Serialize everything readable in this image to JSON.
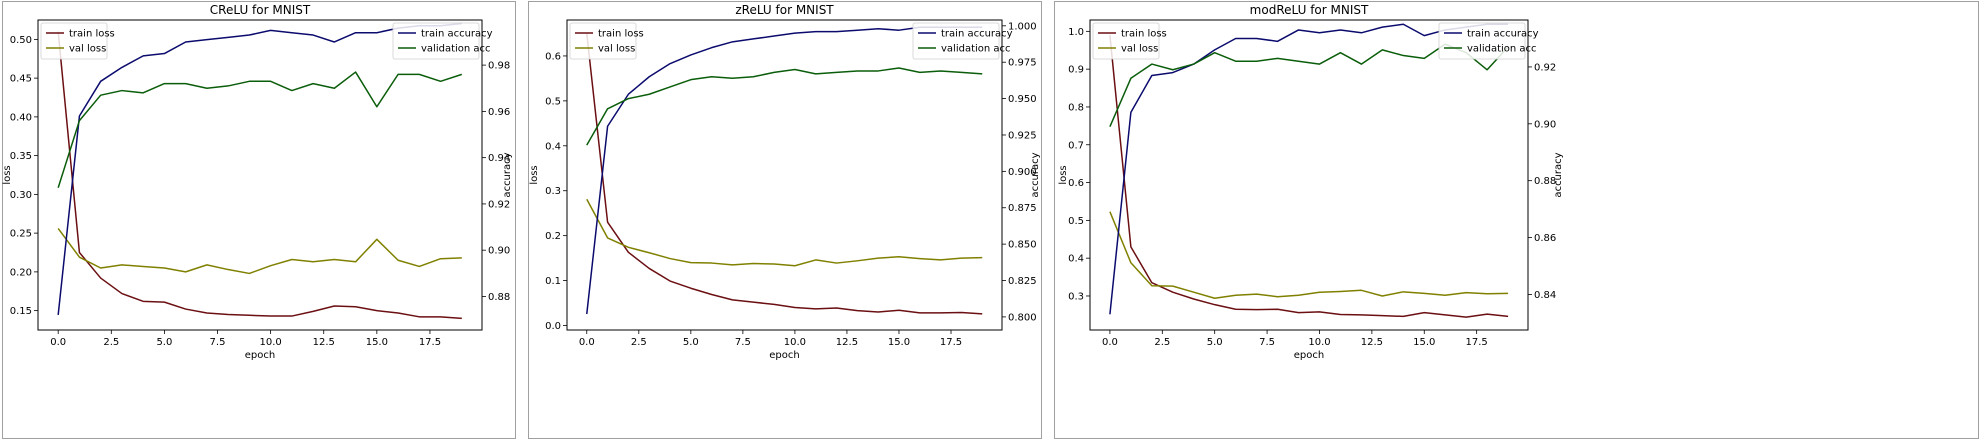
{
  "colors": {
    "train_loss": "#6b0f12",
    "val_loss": "#808000",
    "train_accuracy": "#0b0b6e",
    "validation_acc": "#0a5d0a"
  },
  "chart_data": [
    {
      "type": "line",
      "title": "CReLU for MNIST",
      "xlabel": "epoch",
      "ylabel_left": "loss",
      "ylabel_right": "accuracy",
      "xlim": [
        -0.95,
        19.95
      ],
      "xticks": [
        0.0,
        2.5,
        5.0,
        7.5,
        10.0,
        12.5,
        15.0,
        17.5
      ],
      "x": [
        0,
        1,
        2,
        3,
        4,
        5,
        6,
        7,
        8,
        9,
        10,
        11,
        12,
        13,
        14,
        15,
        16,
        17,
        18,
        19
      ],
      "left_axis": {
        "ylim": [
          0.125,
          0.525
        ],
        "yticks": [
          0.15,
          0.2,
          0.25,
          0.3,
          0.35,
          0.4,
          0.45,
          0.5
        ],
        "legend_position": "top-left",
        "series": [
          {
            "name": "train loss",
            "color_key": "train_loss",
            "values": [
              0.51,
              0.225,
              0.192,
              0.172,
              0.162,
              0.161,
              0.152,
              0.147,
              0.145,
              0.144,
              0.143,
              0.143,
              0.149,
              0.156,
              0.155,
              0.15,
              0.147,
              0.142,
              0.142,
              0.14
            ]
          },
          {
            "name": "val loss",
            "color_key": "val_loss",
            "values": [
              0.256,
              0.219,
              0.205,
              0.209,
              0.207,
              0.205,
              0.2,
              0.209,
              0.203,
              0.198,
              0.208,
              0.216,
              0.213,
              0.216,
              0.213,
              0.242,
              0.215,
              0.207,
              0.217,
              0.218
            ]
          }
        ]
      },
      "right_axis": {
        "ylim": [
          0.8655,
          0.9995
        ],
        "yticks": [
          0.88,
          0.9,
          0.92,
          0.94,
          0.96,
          0.98
        ],
        "legend_position": "top-right",
        "series": [
          {
            "name": "train accuracy",
            "color_key": "train_accuracy",
            "values": [
              0.872,
              0.958,
              0.973,
              0.979,
              0.984,
              0.985,
              0.99,
              0.991,
              0.992,
              0.993,
              0.995,
              0.994,
              0.993,
              0.99,
              0.994,
              0.994,
              0.996,
              0.997,
              0.997,
              0.998
            ]
          },
          {
            "name": "validation acc",
            "color_key": "validation_acc",
            "values": [
              0.927,
              0.956,
              0.967,
              0.969,
              0.968,
              0.972,
              0.972,
              0.97,
              0.971,
              0.973,
              0.973,
              0.969,
              0.972,
              0.97,
              0.977,
              0.962,
              0.976,
              0.976,
              0.973,
              0.976
            ]
          }
        ]
      }
    },
    {
      "type": "line",
      "title": "zReLU for MNIST",
      "xlabel": "epoch",
      "ylabel_left": "loss",
      "ylabel_right": "accuracy",
      "xlim": [
        -0.95,
        19.95
      ],
      "xticks": [
        0.0,
        2.5,
        5.0,
        7.5,
        10.0,
        12.5,
        15.0,
        17.5
      ],
      "x": [
        0,
        1,
        2,
        3,
        4,
        5,
        6,
        7,
        8,
        9,
        10,
        11,
        12,
        13,
        14,
        15,
        16,
        17,
        18,
        19
      ],
      "left_axis": {
        "ylim": [
          -0.01,
          0.68
        ],
        "yticks": [
          0.0,
          0.1,
          0.2,
          0.3,
          0.4,
          0.5,
          0.6
        ],
        "legend_position": "top-left",
        "series": [
          {
            "name": "train loss",
            "color_key": "train_loss",
            "values": [
              0.65,
              0.23,
              0.163,
              0.127,
              0.099,
              0.083,
              0.069,
              0.057,
              0.052,
              0.047,
              0.04,
              0.037,
              0.039,
              0.033,
              0.03,
              0.034,
              0.028,
              0.028,
              0.029,
              0.026
            ]
          },
          {
            "name": "val loss",
            "color_key": "val_loss",
            "values": [
              0.281,
              0.195,
              0.174,
              0.162,
              0.149,
              0.14,
              0.139,
              0.135,
              0.138,
              0.137,
              0.133,
              0.146,
              0.139,
              0.144,
              0.15,
              0.153,
              0.149,
              0.146,
              0.15,
              0.151
            ]
          }
        ]
      },
      "right_axis": {
        "ylim": [
          0.791,
          1.004
        ],
        "yticks": [
          0.8,
          0.825,
          0.85,
          0.875,
          0.9,
          0.925,
          0.95,
          0.975,
          1.0
        ],
        "legend_position": "top-right",
        "series": [
          {
            "name": "train accuracy",
            "color_key": "train_accuracy",
            "values": [
              0.802,
              0.931,
              0.953,
              0.965,
              0.974,
              0.98,
              0.985,
              0.989,
              0.991,
              0.993,
              0.995,
              0.996,
              0.996,
              0.997,
              0.998,
              0.997,
              0.999,
              0.999,
              0.999,
              0.999
            ]
          },
          {
            "name": "validation acc",
            "color_key": "validation_acc",
            "values": [
              0.918,
              0.943,
              0.95,
              0.953,
              0.958,
              0.963,
              0.965,
              0.964,
              0.965,
              0.968,
              0.97,
              0.967,
              0.968,
              0.969,
              0.969,
              0.971,
              0.968,
              0.969,
              0.968,
              0.967
            ]
          }
        ]
      }
    },
    {
      "type": "line",
      "title": "modReLU for MNIST",
      "xlabel": "epoch",
      "ylabel_left": "loss",
      "ylabel_right": "accuracy",
      "xlim": [
        -0.95,
        19.95
      ],
      "xticks": [
        0.0,
        2.5,
        5.0,
        7.5,
        10.0,
        12.5,
        15.0,
        17.5
      ],
      "x": [
        0,
        1,
        2,
        3,
        4,
        5,
        6,
        7,
        8,
        9,
        10,
        11,
        12,
        13,
        14,
        15,
        16,
        17,
        18,
        19
      ],
      "left_axis": {
        "ylim": [
          0.21,
          1.03
        ],
        "yticks": [
          0.3,
          0.4,
          0.5,
          0.6,
          0.7,
          0.8,
          0.9,
          1.0
        ],
        "legend_position": "top-left",
        "series": [
          {
            "name": "train loss",
            "color_key": "train_loss",
            "values": [
              0.99,
              0.43,
              0.335,
              0.31,
              0.292,
              0.277,
              0.265,
              0.264,
              0.265,
              0.256,
              0.258,
              0.251,
              0.25,
              0.248,
              0.246,
              0.256,
              0.25,
              0.244,
              0.252,
              0.246
            ]
          },
          {
            "name": "val loss",
            "color_key": "val_loss",
            "values": [
              0.523,
              0.388,
              0.327,
              0.326,
              0.31,
              0.294,
              0.302,
              0.305,
              0.298,
              0.302,
              0.31,
              0.312,
              0.315,
              0.3,
              0.311,
              0.307,
              0.302,
              0.309,
              0.306,
              0.307
            ]
          }
        ]
      },
      "right_axis": {
        "ylim": [
          0.8275,
          0.9365
        ],
        "yticks": [
          0.84,
          0.86,
          0.88,
          0.9,
          0.92
        ],
        "legend_position": "top-right",
        "series": [
          {
            "name": "train accuracy",
            "color_key": "train_accuracy",
            "values": [
              0.833,
              0.904,
              0.917,
              0.918,
              0.921,
              0.926,
              0.93,
              0.93,
              0.929,
              0.933,
              0.932,
              0.933,
              0.932,
              0.934,
              0.935,
              0.931,
              0.933,
              0.934,
              0.935,
              0.935
            ]
          },
          {
            "name": "validation acc",
            "color_key": "validation_acc",
            "values": [
              0.899,
              0.916,
              0.921,
              0.919,
              0.921,
              0.925,
              0.922,
              0.922,
              0.923,
              0.922,
              0.921,
              0.925,
              0.921,
              0.926,
              0.924,
              0.923,
              0.928,
              0.925,
              0.919,
              0.927
            ]
          }
        ]
      }
    }
  ]
}
